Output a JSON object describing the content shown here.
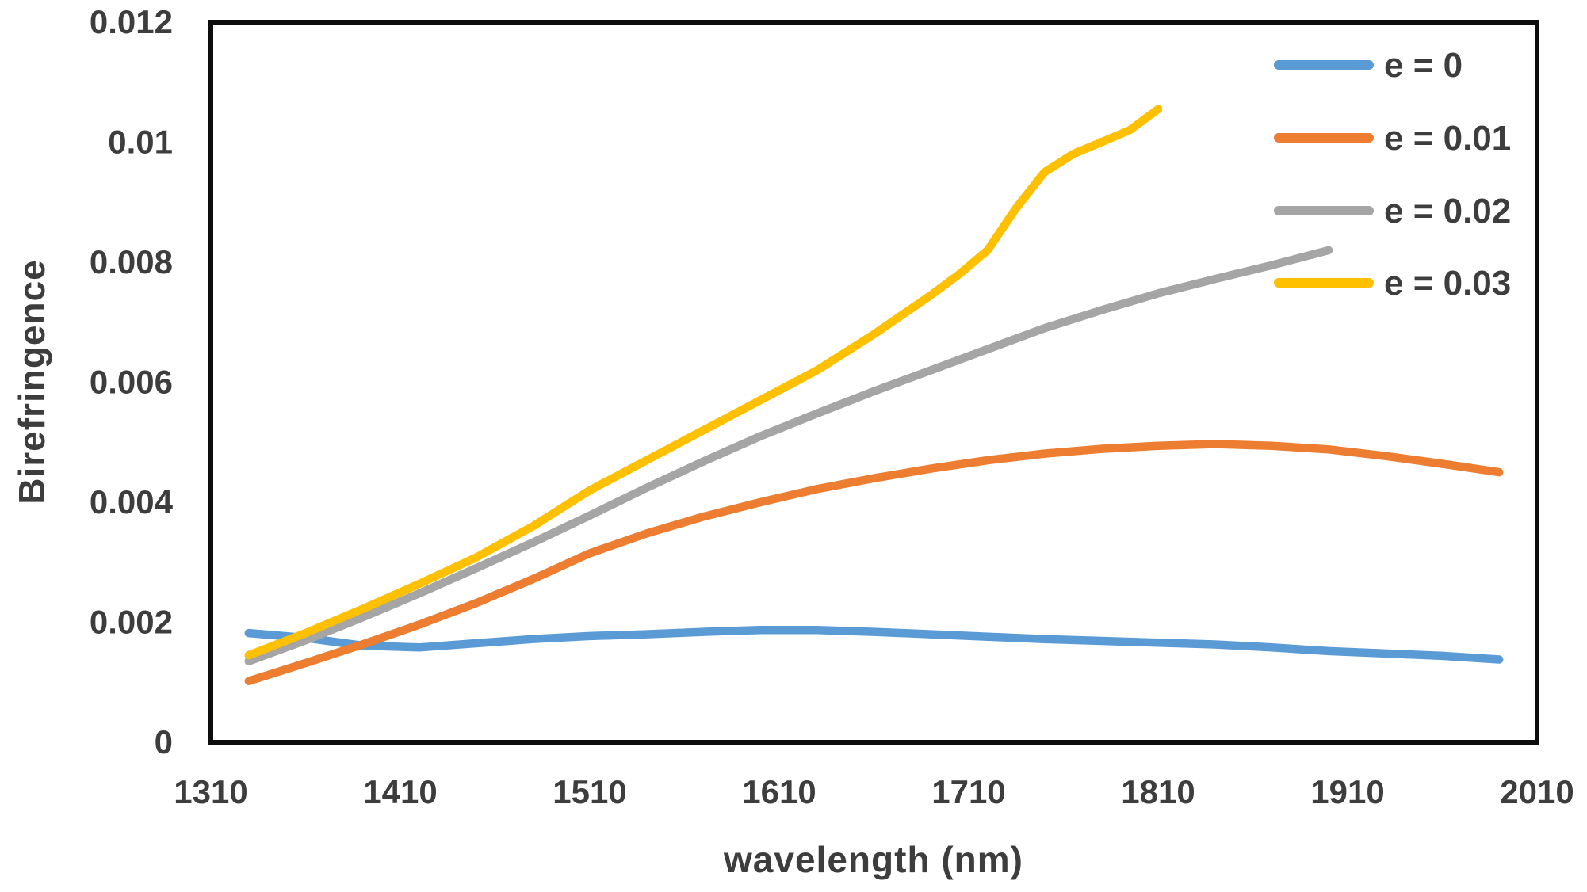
{
  "chart_data": {
    "type": "line",
    "title": "",
    "xlabel": "wavelength (nm)",
    "ylabel": "Birefringence",
    "xlim": [
      1310,
      2010
    ],
    "ylim": [
      0,
      0.012
    ],
    "x_ticks": [
      1310,
      1410,
      1510,
      1610,
      1710,
      1810,
      1910,
      2010
    ],
    "x_tick_labels": [
      "1310",
      "1410",
      "1510",
      "1610",
      "1710",
      "1810",
      "1910",
      "2010"
    ],
    "y_ticks": [
      0,
      0.002,
      0.004,
      0.006,
      0.008,
      0.01,
      0.012
    ],
    "y_tick_labels": [
      "0",
      "0.002",
      "0.004",
      "0.006",
      "0.008",
      "0.01",
      "0.012"
    ],
    "grid": false,
    "legend_position": "top-right-inside",
    "axis_color": "#0d0d0d",
    "tick_text_color": "#3d3d3d",
    "background": "#ffffff",
    "series": [
      {
        "name": "e = 0",
        "color": "#5B9BD5",
        "x": [
          1330,
          1360,
          1390,
          1420,
          1450,
          1480,
          1510,
          1540,
          1570,
          1600,
          1630,
          1660,
          1690,
          1720,
          1750,
          1780,
          1810,
          1840,
          1870,
          1900,
          1930,
          1960,
          1990
        ],
        "y": [
          0.00182,
          0.00174,
          0.00161,
          0.00158,
          0.00165,
          0.00172,
          0.00177,
          0.0018,
          0.00184,
          0.00187,
          0.00187,
          0.00184,
          0.0018,
          0.00176,
          0.00172,
          0.00169,
          0.00166,
          0.00163,
          0.00158,
          0.00152,
          0.00148,
          0.00144,
          0.00138
        ]
      },
      {
        "name": "e = 0.01",
        "color": "#ED7D31",
        "x": [
          1330,
          1360,
          1390,
          1420,
          1450,
          1480,
          1510,
          1540,
          1570,
          1600,
          1630,
          1660,
          1690,
          1720,
          1750,
          1780,
          1810,
          1840,
          1870,
          1900,
          1930,
          1960,
          1990
        ],
        "y": [
          0.00102,
          0.00132,
          0.00163,
          0.00196,
          0.00232,
          0.00272,
          0.00315,
          0.00348,
          0.00376,
          0.004,
          0.00422,
          0.0044,
          0.00456,
          0.0047,
          0.00481,
          0.00489,
          0.00494,
          0.00497,
          0.00494,
          0.00488,
          0.00477,
          0.00464,
          0.0045
        ]
      },
      {
        "name": "e = 0.02",
        "color": "#A5A5A5",
        "x": [
          1330,
          1360,
          1390,
          1420,
          1450,
          1480,
          1510,
          1540,
          1570,
          1600,
          1630,
          1660,
          1690,
          1720,
          1750,
          1780,
          1810,
          1840,
          1870,
          1900
        ],
        "y": [
          0.00135,
          0.0017,
          0.00208,
          0.00248,
          0.0029,
          0.00333,
          0.00378,
          0.00424,
          0.00468,
          0.0051,
          0.00548,
          0.00585,
          0.0062,
          0.00655,
          0.0069,
          0.0072,
          0.00748,
          0.00772,
          0.00795,
          0.0082
        ]
      },
      {
        "name": "e = 0.03",
        "color": "#FFC000",
        "x": [
          1330,
          1360,
          1390,
          1420,
          1450,
          1480,
          1510,
          1540,
          1570,
          1600,
          1630,
          1660,
          1690,
          1705,
          1720,
          1735,
          1750,
          1765,
          1780,
          1795,
          1810
        ],
        "y": [
          0.00145,
          0.00182,
          0.00222,
          0.00264,
          0.00308,
          0.0036,
          0.0042,
          0.0047,
          0.0052,
          0.0057,
          0.0062,
          0.0068,
          0.00745,
          0.0078,
          0.0082,
          0.0089,
          0.0095,
          0.0098,
          0.01,
          0.0102,
          0.01055
        ]
      }
    ],
    "legend": {
      "swatch_x": 1613,
      "swatch_length": 114,
      "row_y": [
        82,
        174,
        266,
        357
      ],
      "label_x": 1746
    }
  },
  "layout_note": ""
}
